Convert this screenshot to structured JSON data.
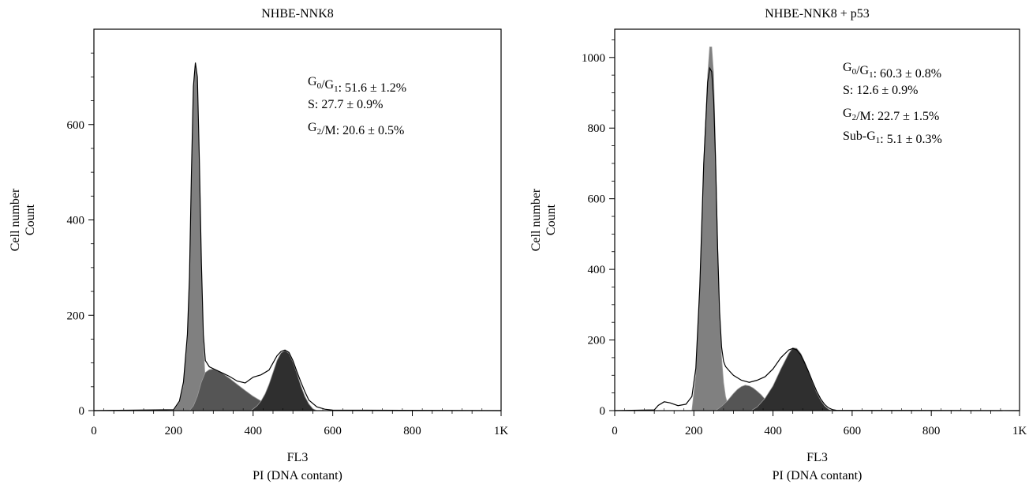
{
  "chart_data": [
    {
      "type": "area",
      "title": "NHBE-NNK8",
      "xlabel_lines": [
        "FL3",
        "PI (DNA contant)"
      ],
      "ylabel_lines": [
        "Cell number",
        "Count"
      ],
      "xlim": [
        0,
        1023
      ],
      "ylim": [
        0,
        800
      ],
      "xticks": [
        0,
        200,
        400,
        600,
        800,
        1023
      ],
      "xtick_labels": [
        "0",
        "200",
        "400",
        "600",
        "800",
        "1K"
      ],
      "yticks": [
        0,
        200,
        400,
        600
      ],
      "ytick_labels": [
        "0",
        "200",
        "400",
        "600"
      ],
      "series": [
        {
          "key": "total",
          "style": "outline",
          "color": "#000000",
          "x": [
            0,
            200,
            215,
            225,
            235,
            240,
            245,
            250,
            255,
            260,
            265,
            270,
            275,
            280,
            290,
            300,
            320,
            340,
            360,
            380,
            400,
            420,
            440,
            450,
            460,
            470,
            480,
            490,
            500,
            510,
            520,
            530,
            540,
            560,
            580,
            600,
            1023
          ],
          "y": [
            0,
            2,
            20,
            60,
            160,
            280,
            500,
            680,
            730,
            700,
            520,
            310,
            160,
            105,
            92,
            88,
            80,
            72,
            62,
            58,
            70,
            75,
            85,
            100,
            115,
            124,
            127,
            122,
            105,
            82,
            60,
            40,
            22,
            8,
            3,
            1,
            0
          ]
        },
        {
          "key": "g0g1",
          "style": "fill",
          "color": "#808080",
          "x": [
            200,
            215,
            225,
            235,
            240,
            245,
            250,
            255,
            260,
            265,
            270,
            275,
            280,
            285,
            290,
            295
          ],
          "y": [
            0,
            18,
            55,
            150,
            270,
            490,
            670,
            725,
            690,
            500,
            290,
            140,
            60,
            25,
            10,
            0
          ]
        },
        {
          "key": "s",
          "style": "fill",
          "color": "#555555",
          "x": [
            240,
            250,
            260,
            270,
            280,
            290,
            300,
            320,
            340,
            360,
            380,
            400,
            420,
            440,
            460,
            480,
            500,
            520
          ],
          "y": [
            0,
            10,
            30,
            60,
            80,
            86,
            87,
            80,
            68,
            55,
            42,
            30,
            20,
            12,
            6,
            3,
            1,
            0
          ]
        },
        {
          "key": "g2m",
          "style": "fill",
          "color": "#2f2f2f",
          "x": [
            395,
            410,
            420,
            430,
            440,
            450,
            460,
            470,
            480,
            490,
            500,
            510,
            520,
            530,
            540,
            550,
            560
          ],
          "y": [
            0,
            10,
            20,
            35,
            55,
            80,
            105,
            121,
            126,
            120,
            102,
            78,
            52,
            30,
            14,
            4,
            0
          ]
        }
      ],
      "annotations": [
        {
          "label": "G",
          "sub1": "0",
          "sep": "/G",
          "sub2": "1",
          "value": ": 51.6 ± 1.2%"
        },
        {
          "label": "S",
          "sub1": "",
          "sep": "",
          "sub2": "",
          "value": ": 27.7 ± 0.9%"
        },
        {
          "label": "G",
          "sub1": "2",
          "sep": "/M",
          "sub2": "",
          "value": ": 20.6 ± 0.5%"
        }
      ]
    },
    {
      "type": "area",
      "title": "NHBE-NNK8 + p53",
      "xlabel_lines": [
        "FL3",
        "PI (DNA contant)"
      ],
      "ylabel_lines": [
        "Cell number",
        "Count"
      ],
      "xlim": [
        0,
        1023
      ],
      "ylim": [
        0,
        1080
      ],
      "xticks": [
        0,
        200,
        400,
        600,
        800,
        1023
      ],
      "xtick_labels": [
        "0",
        "200",
        "400",
        "600",
        "800",
        "1K"
      ],
      "yticks": [
        0,
        200,
        400,
        600,
        800,
        1000
      ],
      "ytick_labels": [
        "0",
        "200",
        "400",
        "600",
        "800",
        "1000"
      ],
      "series": [
        {
          "key": "total",
          "style": "outline",
          "color": "#000000",
          "x": [
            0,
            100,
            110,
            125,
            140,
            160,
            180,
            195,
            205,
            215,
            225,
            235,
            240,
            245,
            250,
            255,
            260,
            265,
            270,
            275,
            280,
            290,
            300,
            320,
            340,
            360,
            380,
            400,
            420,
            440,
            450,
            460,
            470,
            480,
            490,
            500,
            510,
            520,
            530,
            540,
            550,
            560,
            1023
          ],
          "y": [
            0,
            2,
            15,
            25,
            22,
            14,
            18,
            40,
            120,
            350,
            700,
            930,
            970,
            960,
            880,
            700,
            460,
            280,
            180,
            140,
            125,
            112,
            100,
            86,
            80,
            86,
            96,
            118,
            150,
            172,
            176,
            172,
            158,
            135,
            110,
            82,
            56,
            34,
            18,
            8,
            3,
            1,
            0
          ]
        },
        {
          "key": "g0g1",
          "style": "fill",
          "color": "#808080",
          "x": [
            195,
            205,
            215,
            225,
            235,
            240,
            245,
            250,
            255,
            260,
            265,
            270,
            275,
            280,
            285,
            290,
            295
          ],
          "y": [
            0,
            100,
            340,
            700,
            950,
            1030,
            1030,
            950,
            720,
            470,
            260,
            150,
            80,
            40,
            20,
            8,
            0
          ]
        },
        {
          "key": "s",
          "style": "fill",
          "color": "#555555",
          "x": [
            255,
            270,
            285,
            300,
            310,
            320,
            330,
            340,
            350,
            360,
            370,
            380,
            390,
            400,
            410
          ],
          "y": [
            0,
            12,
            28,
            48,
            60,
            68,
            72,
            70,
            64,
            55,
            45,
            32,
            18,
            8,
            0
          ]
        },
        {
          "key": "g2m",
          "style": "fill",
          "color": "#2f2f2f",
          "x": [
            345,
            360,
            380,
            400,
            420,
            430,
            440,
            450,
            460,
            470,
            480,
            490,
            500,
            510,
            520,
            530,
            540,
            550
          ],
          "y": [
            0,
            10,
            35,
            70,
            118,
            140,
            162,
            178,
            176,
            162,
            138,
            110,
            80,
            52,
            30,
            14,
            4,
            0
          ]
        }
      ],
      "annotations": [
        {
          "label": "G",
          "sub1": "0",
          "sep": "/G",
          "sub2": "1",
          "value": ": 60.3 ± 0.8%"
        },
        {
          "label": "S",
          "sub1": "",
          "sep": "",
          "sub2": "",
          "value": ": 12.6 ± 0.9%"
        },
        {
          "label": "G",
          "sub1": "2",
          "sep": "/M",
          "sub2": "",
          "value": ": 22.7 ± 1.5%"
        },
        {
          "label": "Sub-G",
          "sub1": "1",
          "sep": "",
          "sub2": "",
          "value": ": 5.1 ± 0.3%"
        }
      ]
    }
  ]
}
